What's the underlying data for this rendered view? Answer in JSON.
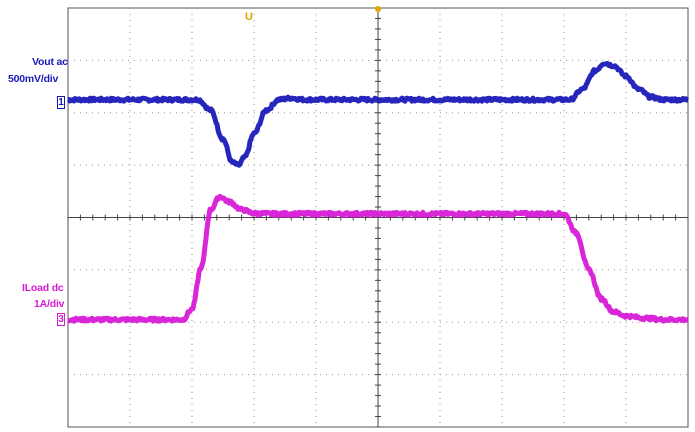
{
  "channels": [
    {
      "id": "1",
      "label_line1": "Vout ac",
      "label_line2": "500mV/div",
      "color": "#1a1ab8"
    },
    {
      "id": "3",
      "label_line1": "ILoad dc",
      "label_line2": "1A/div",
      "color": "#d61ad6"
    }
  ],
  "trigger": {
    "marker": "U",
    "color": "#e0a800",
    "icon": "trigger-arrow-icon"
  },
  "grid": {
    "divisions_x": 10,
    "divisions_y": 8,
    "color": "#9a9a9a"
  },
  "chart_data": {
    "type": "line",
    "grid": true,
    "x": {
      "divisions": 10,
      "range": [
        0,
        10
      ]
    },
    "y": {
      "divisions": 8,
      "range": [
        -4,
        4
      ]
    },
    "series": [
      {
        "name": "Vout ac",
        "x": [
          0,
          2.1,
          2.3,
          2.5,
          2.65,
          2.75,
          2.85,
          3.0,
          3.2,
          3.4,
          3.6,
          3.8,
          8.1,
          8.3,
          8.5,
          8.65,
          8.8,
          9.0,
          9.2,
          9.4,
          9.6,
          10
        ],
        "y": [
          2.25,
          2.25,
          2.05,
          1.5,
          1.05,
          1.0,
          1.15,
          1.6,
          2.05,
          2.25,
          2.28,
          2.25,
          2.25,
          2.45,
          2.8,
          2.95,
          2.9,
          2.7,
          2.45,
          2.3,
          2.25,
          2.25
        ]
      },
      {
        "name": "ILoad dc",
        "x": [
          0,
          1.85,
          2.0,
          2.15,
          2.3,
          2.45,
          2.6,
          2.8,
          3.0,
          3.3,
          3.6,
          8.0,
          8.2,
          8.4,
          8.6,
          8.8,
          9.0,
          9.3,
          9.6,
          10
        ],
        "y": [
          -1.95,
          -1.95,
          -1.75,
          -0.95,
          0.15,
          0.4,
          0.3,
          0.15,
          0.08,
          0.07,
          0.07,
          0.07,
          -0.3,
          -1.0,
          -1.55,
          -1.8,
          -1.88,
          -1.92,
          -1.95,
          -1.95
        ]
      }
    ]
  }
}
